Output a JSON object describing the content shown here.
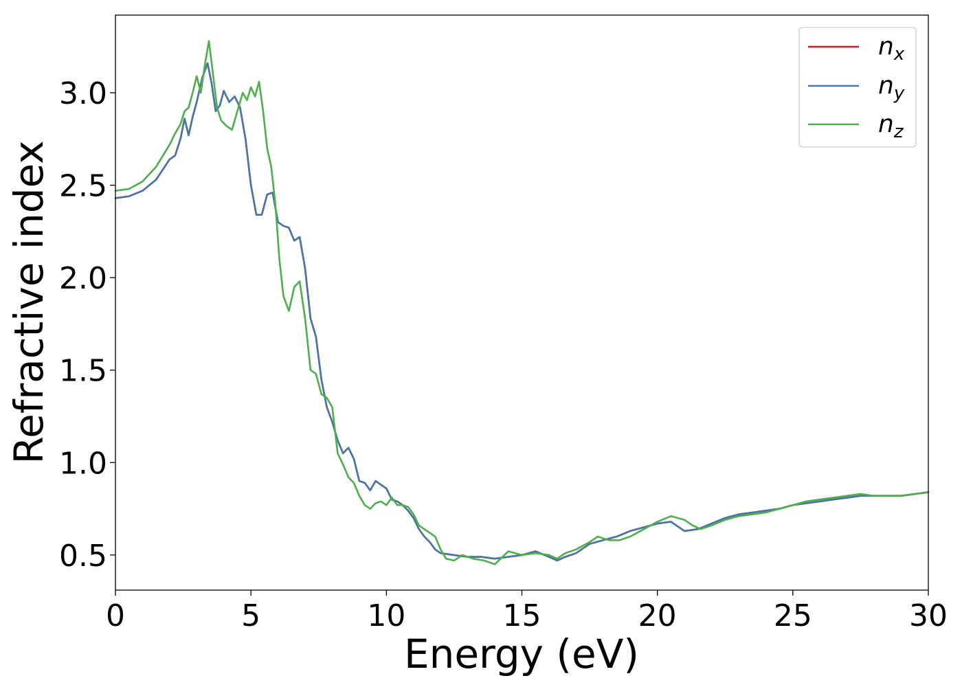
{
  "chart_data": {
    "type": "line",
    "xlabel": "Energy (eV)",
    "ylabel": "Refractive index",
    "xlim": [
      0,
      30
    ],
    "ylim": [
      0.31,
      3.42
    ],
    "xticks": [
      0,
      5,
      10,
      15,
      20,
      25,
      30
    ],
    "xtick_labels": [
      "0",
      "5",
      "10",
      "15",
      "20",
      "25",
      "30"
    ],
    "yticks": [
      0.5,
      1.0,
      1.5,
      2.0,
      2.5,
      3.0
    ],
    "ytick_labels": [
      "0.5",
      "1.0",
      "1.5",
      "2.0",
      "2.5",
      "3.0"
    ],
    "grid": false,
    "legend_position": "top-right",
    "series": [
      {
        "name_base": "n",
        "name_sub": "x",
        "color": "#e41a1c",
        "x": [
          0,
          0.5,
          1.0,
          1.5,
          2.0,
          2.2,
          2.4,
          2.55,
          2.7,
          2.85,
          3.0,
          3.2,
          3.4,
          3.55,
          3.7,
          3.85,
          4.0,
          4.2,
          4.4,
          4.6,
          4.8,
          5.0,
          5.2,
          5.4,
          5.6,
          5.8,
          6.0,
          6.2,
          6.4,
          6.6,
          6.8,
          7.0,
          7.2,
          7.4,
          7.6,
          7.8,
          8.0,
          8.2,
          8.4,
          8.6,
          8.8,
          9.0,
          9.2,
          9.4,
          9.6,
          9.8,
          10.0,
          10.2,
          10.4,
          10.6,
          10.8,
          11.0,
          11.2,
          11.4,
          11.6,
          11.8,
          12.0,
          12.5,
          13.0,
          13.5,
          14.0,
          14.5,
          15.0,
          15.5,
          16.0,
          16.3,
          16.6,
          17.0,
          17.5,
          18.0,
          18.5,
          19.0,
          19.5,
          20.0,
          20.5,
          21.0,
          21.5,
          22.0,
          22.5,
          23.0,
          23.5,
          24.0,
          24.5,
          25.0,
          25.5,
          26.0,
          26.5,
          27.0,
          27.5,
          28.0,
          28.5,
          29.0,
          29.5,
          30.0
        ],
        "y": [
          2.43,
          2.44,
          2.47,
          2.53,
          2.64,
          2.66,
          2.75,
          2.86,
          2.77,
          2.87,
          2.95,
          3.08,
          3.16,
          3.05,
          2.9,
          2.93,
          3.01,
          2.95,
          2.98,
          2.92,
          2.75,
          2.5,
          2.34,
          2.34,
          2.45,
          2.46,
          2.3,
          2.28,
          2.27,
          2.2,
          2.22,
          2.05,
          1.78,
          1.68,
          1.45,
          1.3,
          1.22,
          1.12,
          1.05,
          1.08,
          1.02,
          0.9,
          0.89,
          0.85,
          0.9,
          0.88,
          0.86,
          0.8,
          0.79,
          0.77,
          0.74,
          0.7,
          0.64,
          0.6,
          0.57,
          0.53,
          0.51,
          0.5,
          0.49,
          0.49,
          0.48,
          0.49,
          0.5,
          0.52,
          0.49,
          0.47,
          0.49,
          0.51,
          0.56,
          0.58,
          0.6,
          0.63,
          0.65,
          0.67,
          0.68,
          0.63,
          0.64,
          0.67,
          0.7,
          0.72,
          0.73,
          0.74,
          0.75,
          0.77,
          0.78,
          0.79,
          0.8,
          0.81,
          0.82,
          0.82,
          0.82,
          0.82,
          0.83,
          0.84
        ]
      },
      {
        "name_base": "n",
        "name_sub": "y",
        "color": "#4477aa",
        "x": [
          0,
          0.5,
          1.0,
          1.5,
          2.0,
          2.2,
          2.4,
          2.55,
          2.7,
          2.85,
          3.0,
          3.2,
          3.4,
          3.55,
          3.7,
          3.85,
          4.0,
          4.2,
          4.4,
          4.6,
          4.8,
          5.0,
          5.2,
          5.4,
          5.6,
          5.8,
          6.0,
          6.2,
          6.4,
          6.6,
          6.8,
          7.0,
          7.2,
          7.4,
          7.6,
          7.8,
          8.0,
          8.2,
          8.4,
          8.6,
          8.8,
          9.0,
          9.2,
          9.4,
          9.6,
          9.8,
          10.0,
          10.2,
          10.4,
          10.6,
          10.8,
          11.0,
          11.2,
          11.4,
          11.6,
          11.8,
          12.0,
          12.5,
          13.0,
          13.5,
          14.0,
          14.5,
          15.0,
          15.5,
          16.0,
          16.3,
          16.6,
          17.0,
          17.5,
          18.0,
          18.5,
          19.0,
          19.5,
          20.0,
          20.5,
          21.0,
          21.5,
          22.0,
          22.5,
          23.0,
          23.5,
          24.0,
          24.5,
          25.0,
          25.5,
          26.0,
          26.5,
          27.0,
          27.5,
          28.0,
          28.5,
          29.0,
          29.5,
          30.0
        ],
        "y": [
          2.43,
          2.44,
          2.47,
          2.53,
          2.64,
          2.66,
          2.75,
          2.86,
          2.77,
          2.87,
          2.95,
          3.08,
          3.16,
          3.05,
          2.9,
          2.93,
          3.01,
          2.95,
          2.98,
          2.92,
          2.75,
          2.5,
          2.34,
          2.34,
          2.45,
          2.46,
          2.3,
          2.28,
          2.27,
          2.2,
          2.22,
          2.05,
          1.78,
          1.68,
          1.45,
          1.3,
          1.22,
          1.12,
          1.05,
          1.08,
          1.02,
          0.9,
          0.89,
          0.85,
          0.9,
          0.88,
          0.86,
          0.8,
          0.79,
          0.77,
          0.74,
          0.7,
          0.64,
          0.6,
          0.57,
          0.53,
          0.51,
          0.5,
          0.49,
          0.49,
          0.48,
          0.49,
          0.5,
          0.52,
          0.49,
          0.47,
          0.49,
          0.51,
          0.56,
          0.58,
          0.6,
          0.63,
          0.65,
          0.67,
          0.68,
          0.63,
          0.64,
          0.67,
          0.7,
          0.72,
          0.73,
          0.74,
          0.75,
          0.77,
          0.78,
          0.79,
          0.8,
          0.81,
          0.82,
          0.82,
          0.82,
          0.82,
          0.83,
          0.84
        ]
      },
      {
        "name_base": "n",
        "name_sub": "z",
        "color": "#4daf4a",
        "x": [
          0,
          0.5,
          1.0,
          1.5,
          2.0,
          2.2,
          2.4,
          2.55,
          2.7,
          2.85,
          3.0,
          3.15,
          3.3,
          3.45,
          3.6,
          3.75,
          3.9,
          4.1,
          4.3,
          4.5,
          4.7,
          4.85,
          5.0,
          5.15,
          5.3,
          5.45,
          5.6,
          5.75,
          5.9,
          6.05,
          6.2,
          6.4,
          6.6,
          6.8,
          7.0,
          7.2,
          7.4,
          7.6,
          7.8,
          8.0,
          8.2,
          8.4,
          8.6,
          8.8,
          9.0,
          9.2,
          9.4,
          9.6,
          9.8,
          10.0,
          10.2,
          10.4,
          10.6,
          10.8,
          11.0,
          11.2,
          11.4,
          11.6,
          11.8,
          12.0,
          12.2,
          12.5,
          12.8,
          13.2,
          13.6,
          14.0,
          14.5,
          15.0,
          15.5,
          16.0,
          16.3,
          16.6,
          17.0,
          17.5,
          17.8,
          18.2,
          18.6,
          19.0,
          19.5,
          20.0,
          20.5,
          21.0,
          21.3,
          21.6,
          22.0,
          22.5,
          23.0,
          23.5,
          24.0,
          24.5,
          25.0,
          25.5,
          26.0,
          26.5,
          27.0,
          27.5,
          28.0,
          28.5,
          29.0,
          29.5,
          30.0
        ],
        "y": [
          2.47,
          2.48,
          2.52,
          2.6,
          2.72,
          2.78,
          2.83,
          2.9,
          2.92,
          3.0,
          3.09,
          3.0,
          3.15,
          3.28,
          3.1,
          2.92,
          2.85,
          2.82,
          2.8,
          2.9,
          3.0,
          2.96,
          3.03,
          2.98,
          3.06,
          2.9,
          2.7,
          2.6,
          2.4,
          2.1,
          1.9,
          1.82,
          1.95,
          1.98,
          1.78,
          1.5,
          1.48,
          1.37,
          1.35,
          1.3,
          1.05,
          0.99,
          0.92,
          0.89,
          0.82,
          0.77,
          0.75,
          0.78,
          0.79,
          0.77,
          0.81,
          0.77,
          0.77,
          0.76,
          0.72,
          0.66,
          0.64,
          0.62,
          0.6,
          0.53,
          0.48,
          0.47,
          0.5,
          0.48,
          0.47,
          0.45,
          0.52,
          0.5,
          0.51,
          0.5,
          0.48,
          0.51,
          0.53,
          0.57,
          0.6,
          0.58,
          0.58,
          0.6,
          0.64,
          0.68,
          0.71,
          0.69,
          0.66,
          0.64,
          0.66,
          0.69,
          0.71,
          0.72,
          0.73,
          0.75,
          0.77,
          0.79,
          0.8,
          0.81,
          0.82,
          0.83,
          0.82,
          0.82,
          0.82,
          0.83,
          0.84
        ]
      }
    ]
  }
}
